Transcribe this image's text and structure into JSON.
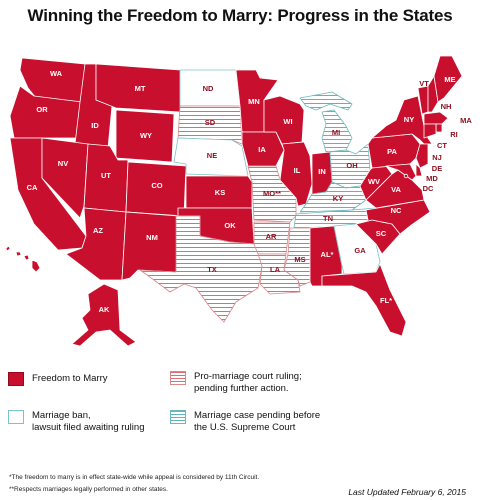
{
  "title": "Winning the Freedom to Marry: Progress in the States",
  "colors": {
    "freedom": "#c8102e",
    "court_stripe": "#e36a75",
    "ban": "#ffffff",
    "ban_border": "#7cc3c8",
    "pending_stripe": "#5fb3ba",
    "label_dark": "#ffffff",
    "label_light": "#8a0e1e"
  },
  "states": {
    "WA": {
      "label": "WA",
      "status": "freedom"
    },
    "OR": {
      "label": "OR",
      "status": "freedom"
    },
    "CA": {
      "label": "CA",
      "status": "freedom"
    },
    "NV": {
      "label": "NV",
      "status": "freedom"
    },
    "ID": {
      "label": "ID",
      "status": "freedom"
    },
    "MT": {
      "label": "MT",
      "status": "freedom"
    },
    "WY": {
      "label": "WY",
      "status": "freedom"
    },
    "UT": {
      "label": "UT",
      "status": "freedom"
    },
    "AZ": {
      "label": "AZ",
      "status": "freedom"
    },
    "CO": {
      "label": "CO",
      "status": "freedom"
    },
    "NM": {
      "label": "NM",
      "status": "freedom"
    },
    "ND": {
      "label": "ND",
      "status": "ban"
    },
    "SD": {
      "label": "SD",
      "status": "court"
    },
    "NE": {
      "label": "NE",
      "status": "ban"
    },
    "KS": {
      "label": "KS",
      "status": "freedom"
    },
    "OK": {
      "label": "OK",
      "status": "freedom"
    },
    "TX": {
      "label": "TX",
      "status": "court"
    },
    "MN": {
      "label": "MN",
      "status": "freedom"
    },
    "IA": {
      "label": "IA",
      "status": "freedom"
    },
    "MO": {
      "label": "MO**",
      "status": "court"
    },
    "AR": {
      "label": "AR",
      "status": "court"
    },
    "LA": {
      "label": "LA",
      "status": "court"
    },
    "WI": {
      "label": "WI",
      "status": "freedom"
    },
    "IL": {
      "label": "IL",
      "status": "freedom"
    },
    "MI": {
      "label": "MI",
      "status": "pending"
    },
    "IN": {
      "label": "IN",
      "status": "freedom"
    },
    "OH": {
      "label": "OH",
      "status": "pending"
    },
    "KY": {
      "label": "KY",
      "status": "pending"
    },
    "TN": {
      "label": "TN",
      "status": "pending"
    },
    "MS": {
      "label": "MS",
      "status": "court"
    },
    "AL": {
      "label": "AL*",
      "status": "freedom"
    },
    "GA": {
      "label": "GA",
      "status": "ban"
    },
    "FL": {
      "label": "FL*",
      "status": "freedom"
    },
    "SC": {
      "label": "SC",
      "status": "freedom"
    },
    "NC": {
      "label": "NC",
      "status": "freedom"
    },
    "VA": {
      "label": "VA",
      "status": "freedom"
    },
    "WV": {
      "label": "WV",
      "status": "freedom"
    },
    "PA": {
      "label": "PA",
      "status": "freedom"
    },
    "NY": {
      "label": "NY",
      "status": "freedom"
    },
    "VT": {
      "label": "VT",
      "status": "freedom"
    },
    "NH": {
      "label": "NH",
      "status": "freedom"
    },
    "ME": {
      "label": "ME",
      "status": "freedom"
    },
    "MA": {
      "label": "MA",
      "status": "freedom"
    },
    "RI": {
      "label": "RI",
      "status": "freedom"
    },
    "CT": {
      "label": "CT",
      "status": "freedom"
    },
    "NJ": {
      "label": "NJ",
      "status": "freedom"
    },
    "DE": {
      "label": "DE",
      "status": "freedom"
    },
    "MD": {
      "label": "MD",
      "status": "freedom"
    },
    "DC": {
      "label": "DC",
      "status": "freedom"
    },
    "AK": {
      "label": "AK",
      "status": "freedom"
    },
    "HI": {
      "label": "HI",
      "status": "freedom"
    }
  },
  "legend": {
    "freedom": "Freedom to Marry",
    "court_line1": "Pro-marriage court ruling;",
    "court_line2": "pending further action.",
    "ban_line1": "Marriage ban,",
    "ban_line2": "lawsuit filed awaiting ruling",
    "pending_line1": "Marriage case pending before",
    "pending_line2": "the U.S. Supreme Court"
  },
  "footnotes": {
    "note1": "*The freedom to marry is in effect state-wide while appeal is considered by 11th Circuit.",
    "note2": "**Respects marriages legally performed in other states."
  },
  "last_updated": "Last Updated February 6, 2015"
}
